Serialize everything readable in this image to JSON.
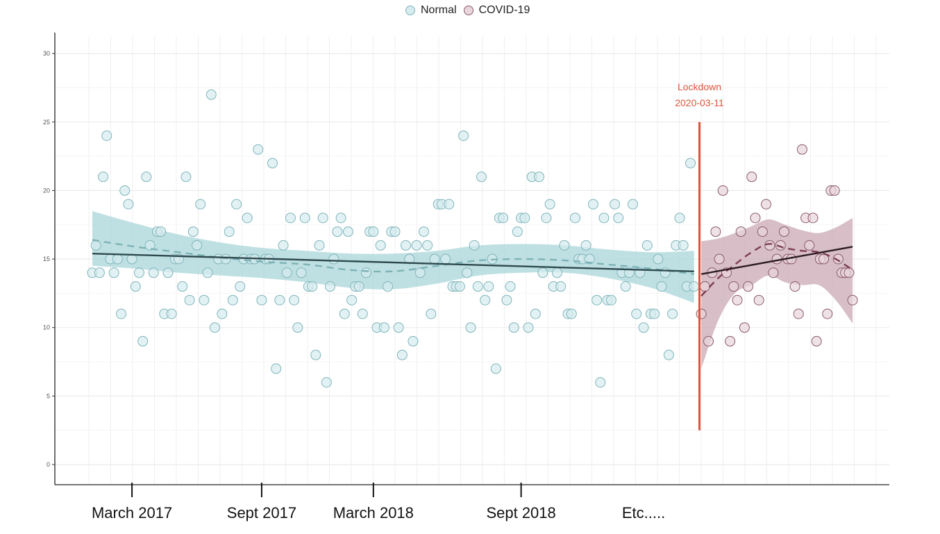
{
  "chart_data": {
    "type": "scatter",
    "title": "",
    "xlabel": "",
    "ylabel": "",
    "ylim": [
      -1.5,
      31.5
    ],
    "yticks": [
      0,
      5,
      10,
      15,
      20,
      25,
      30
    ],
    "grid": true,
    "legend_position": "top-center",
    "x_category_labels": [
      {
        "label": "March 2017",
        "at_index": 11
      },
      {
        "label": "Sept 2017",
        "at_index": 47
      },
      {
        "label": "March 2018",
        "at_index": 78
      },
      {
        "label": "Sept 2018",
        "at_index": 119
      },
      {
        "label": "Etc.....",
        "at_index": 153
      }
    ],
    "annotation": {
      "line1": "Lockdown",
      "line2": "2020-03-11",
      "at_index": 168.5,
      "color": "#e0533a",
      "y_from": 2.5,
      "y_to": 25
    },
    "series": [
      {
        "name": "Normal",
        "fill": "#d6ebee",
        "stroke": "#7fb5bb",
        "band_color": "#a9d5d9",
        "fit_color": "#2e4a4f",
        "smooth_color": "#7db3b6",
        "index_start": 0,
        "values": [
          14,
          16,
          14,
          21,
          24,
          15,
          14,
          15,
          11,
          20,
          19,
          15,
          13,
          14,
          9,
          21,
          16,
          14,
          17,
          17,
          11,
          14,
          11,
          15,
          15,
          13,
          21,
          12,
          17,
          16,
          19,
          12,
          14,
          27,
          10,
          15,
          11,
          15,
          17,
          12,
          19,
          13,
          15,
          18,
          15,
          15,
          23,
          12,
          15,
          15,
          22,
          7,
          12,
          16,
          14,
          18,
          12,
          10,
          14,
          18,
          13,
          13,
          8,
          16,
          18,
          6,
          13,
          15,
          17,
          18,
          11,
          17,
          12,
          13,
          13,
          11,
          14,
          17,
          17,
          10,
          16,
          10,
          13,
          17,
          17,
          10,
          8,
          16,
          15,
          9,
          16,
          14,
          17,
          16,
          11,
          15,
          19,
          19,
          15,
          19,
          13,
          13,
          13,
          24,
          14,
          10,
          16,
          13,
          21,
          12,
          13,
          15,
          7,
          18,
          18,
          12,
          13,
          10,
          17,
          18,
          18,
          10,
          21,
          11,
          21,
          14,
          18,
          19,
          13,
          14,
          13,
          16,
          11,
          11,
          18,
          15,
          15,
          16,
          15,
          19,
          12,
          6,
          18,
          12,
          12,
          19,
          18,
          14,
          13,
          14,
          19,
          11,
          14,
          10,
          16,
          11,
          11,
          15,
          13,
          14,
          8,
          11,
          16,
          18,
          16,
          13,
          22,
          13
        ],
        "fit": {
          "start": 15.4,
          "end": 14.1
        },
        "smooth": [
          16.4,
          15.9,
          15.5,
          15.1,
          14.8,
          14.6,
          14.2,
          14.1,
          14.5,
          14.9,
          15.0,
          14.9,
          14.6,
          14.3,
          13.9
        ],
        "band_upper": [
          18.5,
          17.6,
          16.8,
          16.2,
          15.8,
          15.6,
          15.4,
          15.4,
          15.6,
          16.0,
          16.1,
          16.0,
          15.7,
          15.5,
          15.6
        ],
        "band_lower": [
          14.5,
          14.3,
          14.0,
          13.8,
          13.6,
          13.3,
          12.9,
          12.8,
          13.2,
          13.8,
          14.0,
          14.0,
          13.6,
          12.9,
          11.8
        ]
      },
      {
        "name": "COVID-19",
        "fill": "#e8d6dc",
        "stroke": "#8a5a6b",
        "band_color": "#c9a8b4",
        "fit_color": "#2b1b22",
        "smooth_color": "#7d3d55",
        "index_start": 169,
        "values": [
          11,
          13,
          9,
          14,
          17,
          15,
          20,
          14,
          9,
          13,
          12,
          17,
          10,
          13,
          21,
          18,
          12,
          17,
          19,
          16,
          14,
          15,
          16,
          17,
          15,
          15,
          13,
          11,
          23,
          18,
          16,
          18,
          9,
          15,
          15,
          11,
          20,
          20,
          15,
          14,
          14,
          14,
          12
        ],
        "fit": {
          "start": 13.9,
          "end": 15.9
        },
        "smooth": [
          12.3,
          13.6,
          14.6,
          15.5,
          16.1,
          15.8,
          15.6,
          15.5,
          15.0,
          14.2
        ],
        "band_upper": [
          16.3,
          16.5,
          16.9,
          17.4,
          17.9,
          17.5,
          17.1,
          16.9,
          17.3,
          18.0
        ],
        "band_lower": [
          7.0,
          10.5,
          12.5,
          13.1,
          13.8,
          13.3,
          13.1,
          13.1,
          12.0,
          10.3
        ]
      }
    ]
  },
  "legend": {
    "items": [
      {
        "label": "Normal"
      },
      {
        "label": "COVID-19"
      }
    ]
  }
}
